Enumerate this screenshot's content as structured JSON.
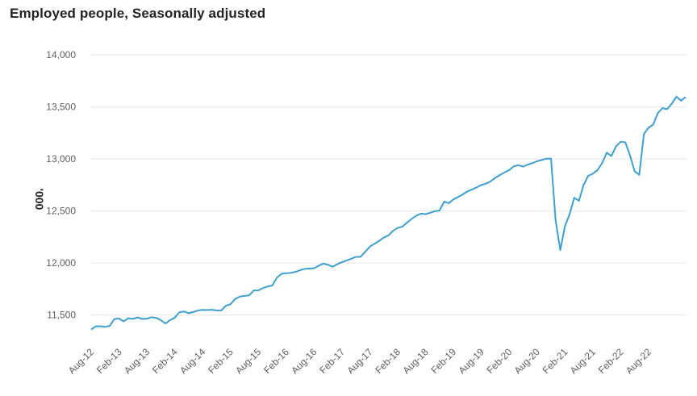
{
  "chart_data": {
    "type": "line",
    "title": "Employed people, Seasonally adjusted",
    "xlabel": "",
    "ylabel": "'000",
    "ylim": [
      11250,
      14000
    ],
    "yticks": [
      11500,
      12000,
      12500,
      13000,
      13500,
      14000
    ],
    "ytick_labels": [
      "11,500",
      "12,000",
      "12,500",
      "13,000",
      "13,500",
      "14,000"
    ],
    "xtick_labels": [
      "Aug-12",
      "Feb-13",
      "Aug-13",
      "Feb-14",
      "Aug-14",
      "Feb-15",
      "Aug-15",
      "Feb-16",
      "Aug-16",
      "Feb-17",
      "Aug-17",
      "Feb-18",
      "Aug-18",
      "Feb-19",
      "Aug-19",
      "Feb-20",
      "Aug-20",
      "Feb-21",
      "Aug-21",
      "Feb-22",
      "Aug-22"
    ],
    "grid": true,
    "legend": "none",
    "line_color": "#3f9fcf",
    "series": [
      {
        "start": "Aug-12",
        "frequency": "monthly",
        "values": [
          11362,
          11392,
          11393,
          11388,
          11397,
          11463,
          11467,
          11440,
          11470,
          11464,
          11478,
          11463,
          11466,
          11480,
          11474,
          11452,
          11420,
          11452,
          11475,
          11528,
          11535,
          11518,
          11530,
          11545,
          11550,
          11549,
          11551,
          11545,
          11545,
          11590,
          11605,
          11655,
          11678,
          11685,
          11690,
          11737,
          11738,
          11760,
          11775,
          11785,
          11860,
          11898,
          11903,
          11906,
          11916,
          11932,
          11945,
          11947,
          11950,
          11975,
          11995,
          11983,
          11965,
          11990,
          12008,
          12025,
          12042,
          12060,
          12060,
          12108,
          12158,
          12185,
          12213,
          12245,
          12265,
          12310,
          12338,
          12350,
          12388,
          12424,
          12455,
          12475,
          12470,
          12483,
          12498,
          12505,
          12590,
          12575,
          12612,
          12635,
          12660,
          12688,
          12707,
          12727,
          12750,
          12763,
          12785,
          12818,
          12846,
          12870,
          12893,
          12930,
          12940,
          12926,
          12945,
          12960,
          12978,
          12990,
          13003,
          13004,
          12405,
          12125,
          12355,
          12468,
          12628,
          12597,
          12748,
          12838,
          12858,
          12892,
          12960,
          13060,
          13028,
          13120,
          13165,
          13160,
          13035,
          12882,
          12848,
          13240,
          13300,
          13330,
          13440,
          13488,
          13478,
          13530,
          13598,
          13560,
          13595
        ]
      }
    ]
  }
}
